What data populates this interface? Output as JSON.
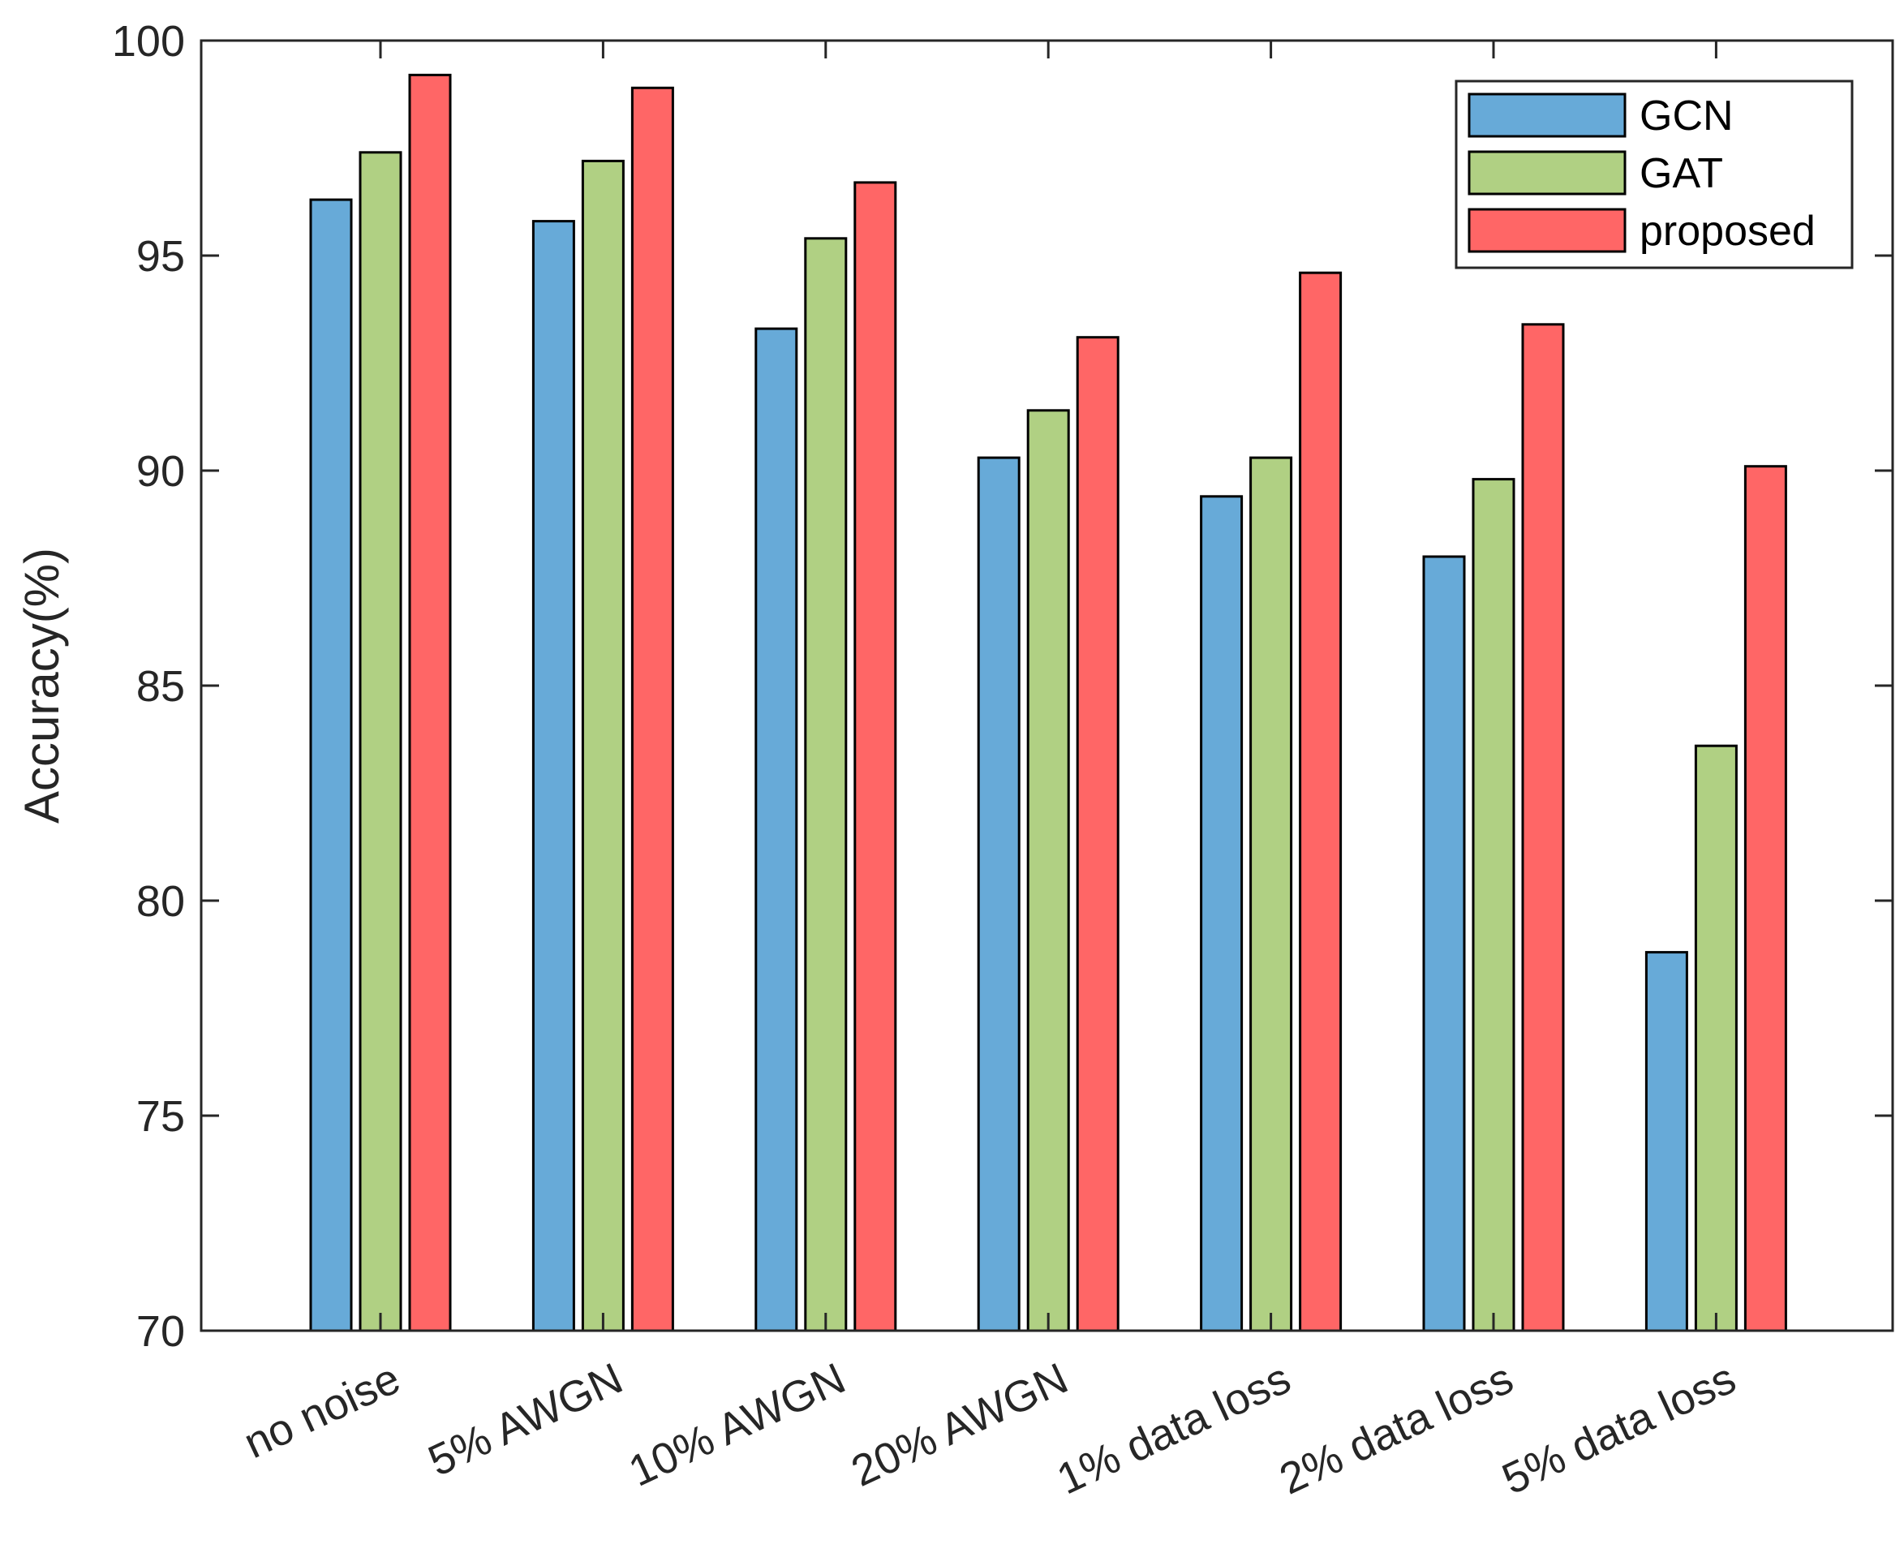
{
  "chart_data": {
    "type": "bar",
    "title": "",
    "xlabel": "",
    "ylabel": "Accuracy(%)",
    "ylim": [
      70,
      100
    ],
    "yticks": [
      70,
      75,
      80,
      85,
      90,
      95,
      100
    ],
    "grid": false,
    "legend_position": "top-right",
    "categories": [
      "no noise",
      "5% AWGN",
      "10% AWGN",
      "20% AWGN",
      "1% data loss",
      "2% data loss",
      "5% data loss"
    ],
    "series": [
      {
        "name": "GCN",
        "color": "#67AAD8",
        "values": [
          96.3,
          95.8,
          93.3,
          90.3,
          89.4,
          88.0,
          78.8
        ]
      },
      {
        "name": "GAT",
        "color": "#B0D083",
        "values": [
          97.4,
          97.2,
          95.4,
          91.4,
          90.3,
          89.8,
          83.6
        ]
      },
      {
        "name": "proposed",
        "color": "#FF6666",
        "values": [
          99.2,
          98.9,
          96.7,
          93.1,
          94.6,
          93.4,
          90.1
        ]
      }
    ]
  }
}
